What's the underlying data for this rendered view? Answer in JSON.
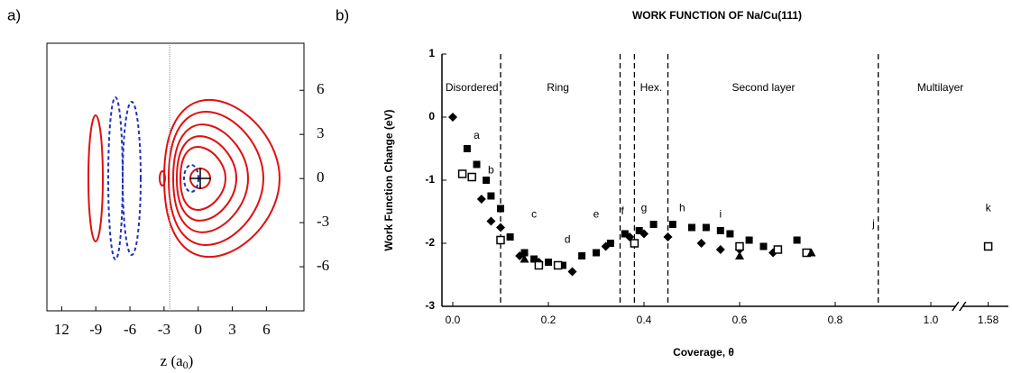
{
  "chart_data": [
    {
      "type": "contour",
      "panel_label": "a)",
      "xlabel": "z (a",
      "xlabel_sub": "0",
      "xlabel_end": ")",
      "xlim": [
        -13.3,
        9.3
      ],
      "ylim": [
        -9,
        9.2
      ],
      "xticks": [
        {
          "value": -12,
          "label": "12"
        },
        -9,
        -6,
        -3,
        0,
        3,
        6
      ],
      "yticks": [
        6,
        3,
        0,
        -3,
        -6
      ],
      "vline": -2.5
    },
    {
      "type": "scatter",
      "panel_label": "b)",
      "title": "WORK FUNCTION OF Na/Cu(111)",
      "xlabel": "Coverage,  θ",
      "ylabel": "Work Function Change (eV)",
      "xlim": [
        -0.02,
        1.62
      ],
      "xbreak": [
        1.06,
        1.52
      ],
      "ylim": [
        -3,
        1
      ],
      "xticks": [
        {
          "value": 0,
          "label": "0.0"
        },
        {
          "value": 0.2,
          "label": "0.2"
        },
        {
          "value": 0.4,
          "label": "0.4"
        },
        {
          "value": 0.6,
          "label": "0.6"
        },
        {
          "value": 0.8,
          "label": "0.8"
        },
        {
          "value": 1,
          "label": "1.0"
        },
        1.58
      ],
      "yticks": [
        1,
        0,
        -1,
        -2,
        -3
      ],
      "vlines": [
        0.1,
        0.35,
        0.38,
        0.45,
        0.89
      ],
      "regions": [
        {
          "label": "Disordered",
          "x": 0.04
        },
        {
          "label": "Ring",
          "x": 0.22
        },
        {
          "label": "Hex.",
          "x": 0.415
        },
        {
          "label": "Second layer",
          "x": 0.65
        },
        {
          "label": "Multilayer",
          "x": 1.02
        }
      ],
      "annotations": [
        {
          "text": "a",
          "x": 0.05,
          "y": -0.3
        },
        {
          "text": "b",
          "x": 0.08,
          "y": -0.85
        },
        {
          "text": "c",
          "x": 0.17,
          "y": -1.55
        },
        {
          "text": "d",
          "x": 0.24,
          "y": -1.95
        },
        {
          "text": "e",
          "x": 0.3,
          "y": -1.55
        },
        {
          "text": "f",
          "x": 0.355,
          "y": -1.5
        },
        {
          "text": "g",
          "x": 0.4,
          "y": -1.45
        },
        {
          "text": "h",
          "x": 0.48,
          "y": -1.45
        },
        {
          "text": "i",
          "x": 0.56,
          "y": -1.55
        },
        {
          "text": "j",
          "x": 0.88,
          "y": -1.7
        },
        {
          "text": "k",
          "x": 1.58,
          "y": -1.45
        }
      ],
      "series": [
        {
          "marker": "square",
          "color": "#000000",
          "x": [
            0.03,
            0.05,
            0.07,
            0.08,
            0.1,
            0.12,
            0.15,
            0.17,
            0.2,
            0.23,
            0.27,
            0.3,
            0.33,
            0.36,
            0.39,
            0.42,
            0.46,
            0.5,
            0.53,
            0.56,
            0.58,
            0.62,
            0.65,
            0.72
          ],
          "values": [
            -0.5,
            -0.75,
            -1.0,
            -1.25,
            -1.45,
            -1.9,
            -2.15,
            -2.25,
            -2.3,
            -2.35,
            -2.2,
            -2.15,
            -2.0,
            -1.85,
            -1.8,
            -1.7,
            -1.7,
            -1.75,
            -1.75,
            -1.8,
            -1.85,
            -1.95,
            -2.05,
            -1.95
          ]
        },
        {
          "marker": "diamond",
          "color": "#000000",
          "x": [
            0.0,
            0.04,
            0.06,
            0.08,
            0.1,
            0.14,
            0.18,
            0.25,
            0.32,
            0.37,
            0.4,
            0.45,
            0.52,
            0.56,
            0.6,
            0.67
          ],
          "values": [
            0.0,
            -0.95,
            -1.3,
            -1.65,
            -1.75,
            -2.2,
            -2.3,
            -2.45,
            -2.05,
            -1.9,
            -1.85,
            -1.9,
            -2.0,
            -2.1,
            -2.1,
            -2.15
          ]
        },
        {
          "marker": "open-square",
          "color": "#000000",
          "x": [
            0.02,
            0.04,
            0.1,
            0.18,
            0.22,
            0.38,
            0.6,
            0.68,
            0.74,
            1.58
          ],
          "values": [
            -0.9,
            -0.95,
            -1.95,
            -2.35,
            -2.35,
            -2.0,
            -2.05,
            -2.1,
            -2.15,
            -2.05
          ]
        },
        {
          "marker": "triangle",
          "color": "#000000",
          "x": [
            0.15,
            0.6,
            0.75
          ],
          "values": [
            -2.25,
            -2.2,
            -2.15
          ]
        }
      ]
    }
  ]
}
